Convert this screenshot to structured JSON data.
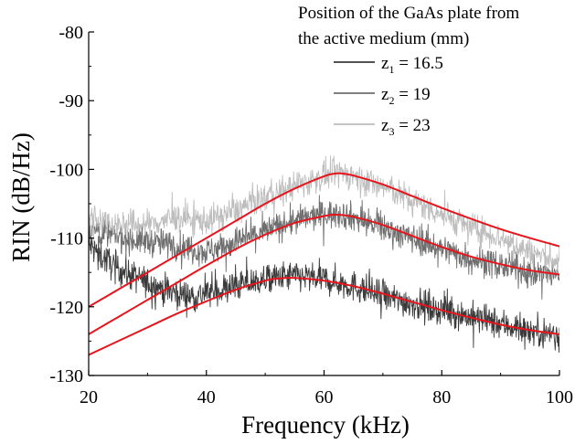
{
  "chart_data": {
    "type": "line",
    "title": "",
    "xlabel": "Frequency (kHz)",
    "ylabel": "RIN (dB/Hz)",
    "xlim": [
      20,
      100
    ],
    "ylim": [
      -130,
      -80
    ],
    "xticks": [
      20,
      40,
      60,
      80,
      100
    ],
    "yticks": [
      -80,
      -90,
      -100,
      -110,
      -120,
      -130
    ],
    "grid": false,
    "legend": {
      "placement": "top-right",
      "title_lines": [
        "Position of the GaAs plate from",
        "the active medium (mm)"
      ],
      "entries": [
        {
          "var": "z",
          "sub": "1",
          "value": " = 16.5",
          "color": "#3a3a3a"
        },
        {
          "var": "z",
          "sub": "2",
          "value": " = 19",
          "color": "#6e6e6e"
        },
        {
          "var": "z",
          "sub": "3",
          "value": " = 23",
          "color": "#bdbdbd"
        }
      ]
    },
    "series": [
      {
        "color": "#3a3a3a",
        "noise": 1.4,
        "points": [
          [
            20,
            -111
          ],
          [
            22,
            -112.5
          ],
          [
            25,
            -114.5
          ],
          [
            30,
            -116.5
          ],
          [
            35,
            -118
          ],
          [
            38,
            -118.5
          ],
          [
            40,
            -118
          ],
          [
            45,
            -117
          ],
          [
            50,
            -116
          ],
          [
            55,
            -115.5
          ],
          [
            60,
            -116
          ],
          [
            65,
            -117
          ],
          [
            70,
            -118.5
          ],
          [
            75,
            -119.5
          ],
          [
            80,
            -120.5
          ],
          [
            85,
            -121.5
          ],
          [
            90,
            -122.5
          ],
          [
            95,
            -123.5
          ],
          [
            100,
            -124
          ]
        ]
      },
      {
        "color": "#6e6e6e",
        "noise": 1.3,
        "points": [
          [
            20,
            -108.5
          ],
          [
            25,
            -110
          ],
          [
            30,
            -110.5
          ],
          [
            35,
            -111
          ],
          [
            40,
            -112
          ],
          [
            45,
            -110.5
          ],
          [
            50,
            -109
          ],
          [
            55,
            -107.5
          ],
          [
            60,
            -106.5
          ],
          [
            63,
            -106.5
          ],
          [
            65,
            -107
          ],
          [
            70,
            -108.5
          ],
          [
            75,
            -110
          ],
          [
            80,
            -111.5
          ],
          [
            85,
            -113
          ],
          [
            90,
            -114
          ],
          [
            95,
            -115
          ],
          [
            100,
            -115.5
          ]
        ]
      },
      {
        "color": "#bdbdbd",
        "noise": 1.3,
        "points": [
          [
            20,
            -107
          ],
          [
            25,
            -108
          ],
          [
            30,
            -108
          ],
          [
            35,
            -107
          ],
          [
            40,
            -107.5
          ],
          [
            45,
            -106
          ],
          [
            50,
            -104
          ],
          [
            55,
            -102.5
          ],
          [
            60,
            -101
          ],
          [
            63,
            -100.5
          ],
          [
            65,
            -101
          ],
          [
            70,
            -102.5
          ],
          [
            75,
            -104.5
          ],
          [
            80,
            -106.5
          ],
          [
            85,
            -108.5
          ],
          [
            90,
            -110
          ],
          [
            95,
            -112
          ],
          [
            100,
            -113.5
          ]
        ]
      }
    ],
    "fits": [
      {
        "color": "#e8141c",
        "points": [
          [
            20,
            -127
          ],
          [
            25,
            -125
          ],
          [
            30,
            -123
          ],
          [
            35,
            -121
          ],
          [
            40,
            -119.2
          ],
          [
            45,
            -117.5
          ],
          [
            50,
            -116.2
          ],
          [
            52,
            -115.9
          ],
          [
            55,
            -115.8
          ],
          [
            60,
            -116.2
          ],
          [
            65,
            -117
          ],
          [
            70,
            -118.1
          ],
          [
            75,
            -119.3
          ],
          [
            80,
            -120.5
          ],
          [
            85,
            -121.6
          ],
          [
            90,
            -122.6
          ],
          [
            95,
            -123.4
          ],
          [
            100,
            -124
          ]
        ]
      },
      {
        "color": "#e8141c",
        "points": [
          [
            20,
            -124
          ],
          [
            25,
            -121.5
          ],
          [
            30,
            -119
          ],
          [
            35,
            -116.5
          ],
          [
            40,
            -114
          ],
          [
            45,
            -111.6
          ],
          [
            50,
            -109.5
          ],
          [
            55,
            -107.8
          ],
          [
            60,
            -106.8
          ],
          [
            62,
            -106.6
          ],
          [
            65,
            -106.9
          ],
          [
            70,
            -108.1
          ],
          [
            75,
            -109.7
          ],
          [
            80,
            -111.3
          ],
          [
            85,
            -112.7
          ],
          [
            90,
            -113.8
          ],
          [
            95,
            -114.7
          ],
          [
            100,
            -115.3
          ]
        ]
      },
      {
        "color": "#e8141c",
        "points": [
          [
            20,
            -120
          ],
          [
            25,
            -117.5
          ],
          [
            30,
            -115
          ],
          [
            35,
            -112.5
          ],
          [
            40,
            -110
          ],
          [
            45,
            -107.5
          ],
          [
            50,
            -105
          ],
          [
            55,
            -102.8
          ],
          [
            60,
            -101
          ],
          [
            62,
            -100.6
          ],
          [
            63,
            -100.6
          ],
          [
            65,
            -100.9
          ],
          [
            70,
            -102.2
          ],
          [
            75,
            -103.9
          ],
          [
            80,
            -105.6
          ],
          [
            85,
            -107.2
          ],
          [
            90,
            -108.7
          ],
          [
            95,
            -110
          ],
          [
            100,
            -111.2
          ]
        ]
      }
    ]
  }
}
